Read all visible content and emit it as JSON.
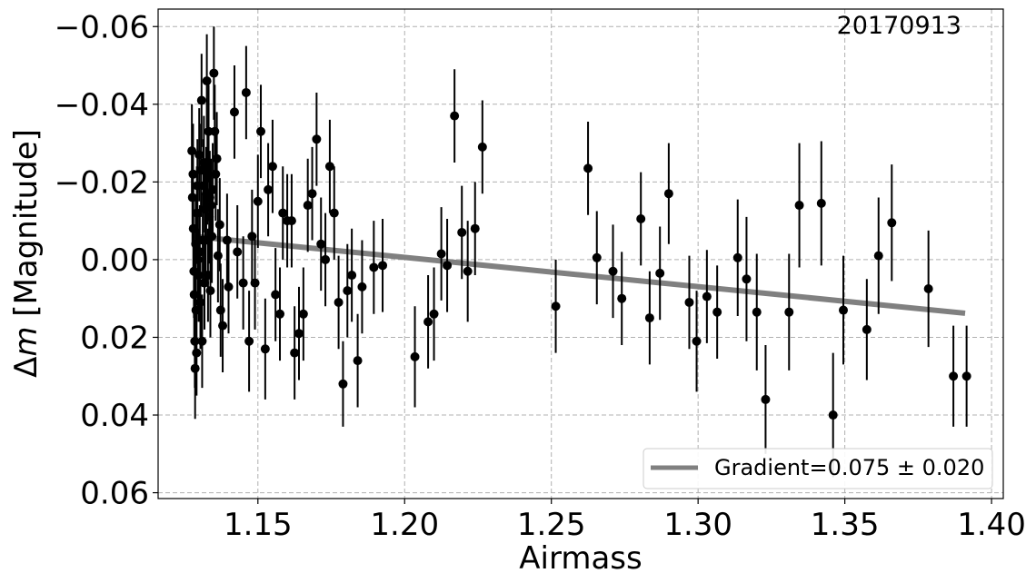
{
  "chart_data": {
    "type": "scatter",
    "annotation": "20170913",
    "xlabel": "Airmass",
    "ylabel_prefix": "Δ",
    "ylabel_var": "m",
    "ylabel_suffix": " [Magnitude]",
    "xlim": [
      1.116,
      1.404
    ],
    "ylim": [
      0.0615,
      -0.0645
    ],
    "y_inverted": true,
    "grid": true,
    "x_ticks": [
      1.15,
      1.2,
      1.25,
      1.3,
      1.35,
      1.4
    ],
    "x_tick_labels": [
      "1.15",
      "1.20",
      "1.25",
      "1.30",
      "1.35",
      "1.40"
    ],
    "y_ticks": [
      -0.06,
      -0.04,
      -0.02,
      0.0,
      0.02,
      0.04,
      0.06
    ],
    "y_tick_labels": [
      "−0.06",
      "−0.04",
      "−0.02",
      "0.00",
      "0.02",
      "0.04",
      "0.06"
    ],
    "marker_color": "#000000",
    "fit_color": "#808080",
    "legend_position": "lower-right",
    "fit": {
      "label": "Gradient=0.075 ± 0.020",
      "x": [
        1.128,
        1.391
      ],
      "y": [
        -0.006,
        0.0138
      ]
    },
    "points": [
      {
        "x": 1.1275,
        "y": -0.028,
        "err": 0.012
      },
      {
        "x": 1.1277,
        "y": -0.016,
        "err": 0.012
      },
      {
        "x": 1.1279,
        "y": -0.022,
        "err": 0.013
      },
      {
        "x": 1.128,
        "y": -0.008,
        "err": 0.012
      },
      {
        "x": 1.1282,
        "y": 0.003,
        "err": 0.012
      },
      {
        "x": 1.1283,
        "y": 0.009,
        "err": 0.012
      },
      {
        "x": 1.1285,
        "y": 0.021,
        "err": 0.012
      },
      {
        "x": 1.1286,
        "y": 0.028,
        "err": 0.013
      },
      {
        "x": 1.1288,
        "y": -0.004,
        "err": 0.012
      },
      {
        "x": 1.1289,
        "y": 0.013,
        "err": 0.012
      },
      {
        "x": 1.1291,
        "y": 0.024,
        "err": 0.011
      },
      {
        "x": 1.1292,
        "y": -0.012,
        "err": 0.012
      },
      {
        "x": 1.1294,
        "y": -0.019,
        "err": 0.012
      },
      {
        "x": 1.1296,
        "y": 0.0,
        "err": 0.012
      },
      {
        "x": 1.1298,
        "y": 0.004,
        "err": 0.012
      },
      {
        "x": 1.13,
        "y": -0.027,
        "err": 0.012
      },
      {
        "x": 1.1302,
        "y": -0.002,
        "err": 0.012
      },
      {
        "x": 1.1304,
        "y": 0.011,
        "err": 0.012
      },
      {
        "x": 1.1306,
        "y": -0.023,
        "err": 0.012
      },
      {
        "x": 1.1308,
        "y": -0.041,
        "err": 0.012
      },
      {
        "x": 1.131,
        "y": 0.021,
        "err": 0.012
      },
      {
        "x": 1.1312,
        "y": -0.005,
        "err": 0.012
      },
      {
        "x": 1.1314,
        "y": -0.019,
        "err": 0.012
      },
      {
        "x": 1.1316,
        "y": -0.025,
        "err": 0.012
      },
      {
        "x": 1.1318,
        "y": 0.006,
        "err": 0.012
      },
      {
        "x": 1.132,
        "y": -0.013,
        "err": 0.012
      },
      {
        "x": 1.1322,
        "y": -0.005,
        "err": 0.012
      },
      {
        "x": 1.1324,
        "y": -0.017,
        "err": 0.012
      },
      {
        "x": 1.1326,
        "y": -0.046,
        "err": 0.012
      },
      {
        "x": 1.1328,
        "y": -0.021,
        "err": 0.012
      },
      {
        "x": 1.133,
        "y": 0.004,
        "err": 0.012
      },
      {
        "x": 1.1332,
        "y": -0.033,
        "err": 0.012
      },
      {
        "x": 1.1334,
        "y": -0.011,
        "err": 0.012
      },
      {
        "x": 1.1336,
        "y": -0.016,
        "err": 0.012
      },
      {
        "x": 1.1338,
        "y": 0.008,
        "err": 0.012
      },
      {
        "x": 1.134,
        "y": -0.014,
        "err": 0.012
      },
      {
        "x": 1.1343,
        "y": -0.006,
        "err": 0.012
      },
      {
        "x": 1.1346,
        "y": -0.018,
        "err": 0.012
      },
      {
        "x": 1.135,
        "y": -0.048,
        "err": 0.012
      },
      {
        "x": 1.1353,
        "y": -0.033,
        "err": 0.012
      },
      {
        "x": 1.1356,
        "y": -0.022,
        "err": 0.012
      },
      {
        "x": 1.136,
        "y": -0.026,
        "err": 0.012
      },
      {
        "x": 1.1364,
        "y": -0.001,
        "err": 0.012
      },
      {
        "x": 1.137,
        "y": -0.009,
        "err": 0.012
      },
      {
        "x": 1.1373,
        "y": 0.013,
        "err": 0.012
      },
      {
        "x": 1.138,
        "y": 0.017,
        "err": 0.012
      },
      {
        "x": 1.1395,
        "y": -0.005,
        "err": 0.012
      },
      {
        "x": 1.14,
        "y": 0.007,
        "err": 0.012
      },
      {
        "x": 1.142,
        "y": -0.038,
        "err": 0.012
      },
      {
        "x": 1.143,
        "y": -0.002,
        "err": 0.012
      },
      {
        "x": 1.145,
        "y": 0.006,
        "err": 0.012
      },
      {
        "x": 1.146,
        "y": -0.043,
        "err": 0.012
      },
      {
        "x": 1.147,
        "y": 0.021,
        "err": 0.013
      },
      {
        "x": 1.148,
        "y": -0.006,
        "err": 0.012
      },
      {
        "x": 1.149,
        "y": 0.006,
        "err": 0.012
      },
      {
        "x": 1.15,
        "y": -0.015,
        "err": 0.012
      },
      {
        "x": 1.151,
        "y": -0.033,
        "err": 0.012
      },
      {
        "x": 1.1525,
        "y": 0.023,
        "err": 0.013
      },
      {
        "x": 1.1535,
        "y": -0.018,
        "err": 0.012
      },
      {
        "x": 1.155,
        "y": -0.024,
        "err": 0.012
      },
      {
        "x": 1.156,
        "y": 0.009,
        "err": 0.012
      },
      {
        "x": 1.1575,
        "y": 0.014,
        "err": 0.012
      },
      {
        "x": 1.1585,
        "y": -0.012,
        "err": 0.012
      },
      {
        "x": 1.16,
        "y": -0.01,
        "err": 0.012
      },
      {
        "x": 1.1615,
        "y": -0.01,
        "err": 0.012
      },
      {
        "x": 1.1625,
        "y": 0.024,
        "err": 0.012
      },
      {
        "x": 1.164,
        "y": 0.019,
        "err": 0.012
      },
      {
        "x": 1.1655,
        "y": 0.014,
        "err": 0.012
      },
      {
        "x": 1.167,
        "y": -0.014,
        "err": 0.012
      },
      {
        "x": 1.1685,
        "y": -0.017,
        "err": 0.012
      },
      {
        "x": 1.17,
        "y": -0.031,
        "err": 0.012
      },
      {
        "x": 1.1715,
        "y": -0.004,
        "err": 0.012
      },
      {
        "x": 1.173,
        "y": 0.0,
        "err": 0.012
      },
      {
        "x": 1.1745,
        "y": -0.024,
        "err": 0.012
      },
      {
        "x": 1.176,
        "y": -0.012,
        "err": 0.012
      },
      {
        "x": 1.1775,
        "y": 0.011,
        "err": 0.012
      },
      {
        "x": 1.179,
        "y": 0.032,
        "err": 0.011
      },
      {
        "x": 1.1805,
        "y": 0.008,
        "err": 0.012
      },
      {
        "x": 1.182,
        "y": 0.004,
        "err": 0.012
      },
      {
        "x": 1.184,
        "y": 0.026,
        "err": 0.012
      },
      {
        "x": 1.1855,
        "y": 0.007,
        "err": 0.012
      },
      {
        "x": 1.1895,
        "y": 0.002,
        "err": 0.012
      },
      {
        "x": 1.1925,
        "y": 0.0015,
        "err": 0.012
      },
      {
        "x": 1.2035,
        "y": 0.025,
        "err": 0.013
      },
      {
        "x": 1.208,
        "y": 0.016,
        "err": 0.012
      },
      {
        "x": 1.21,
        "y": 0.014,
        "err": 0.012
      },
      {
        "x": 1.2125,
        "y": -0.0015,
        "err": 0.012
      },
      {
        "x": 1.2145,
        "y": 0.0015,
        "err": 0.012
      },
      {
        "x": 1.217,
        "y": -0.037,
        "err": 0.012
      },
      {
        "x": 1.2195,
        "y": -0.007,
        "err": 0.012
      },
      {
        "x": 1.2215,
        "y": 0.003,
        "err": 0.013
      },
      {
        "x": 1.224,
        "y": -0.008,
        "err": 0.012
      },
      {
        "x": 1.2265,
        "y": -0.029,
        "err": 0.012
      },
      {
        "x": 1.2515,
        "y": 0.012,
        "err": 0.012
      },
      {
        "x": 1.2625,
        "y": -0.0235,
        "err": 0.012
      },
      {
        "x": 1.2655,
        "y": -0.0005,
        "err": 0.012
      },
      {
        "x": 1.271,
        "y": 0.003,
        "err": 0.012
      },
      {
        "x": 1.274,
        "y": 0.01,
        "err": 0.012
      },
      {
        "x": 1.2805,
        "y": -0.0105,
        "err": 0.012
      },
      {
        "x": 1.2835,
        "y": 0.015,
        "err": 0.012
      },
      {
        "x": 1.287,
        "y": 0.0035,
        "err": 0.012
      },
      {
        "x": 1.29,
        "y": -0.017,
        "err": 0.013
      },
      {
        "x": 1.297,
        "y": 0.011,
        "err": 0.012
      },
      {
        "x": 1.2995,
        "y": 0.021,
        "err": 0.013
      },
      {
        "x": 1.303,
        "y": 0.0095,
        "err": 0.012
      },
      {
        "x": 1.3065,
        "y": 0.0135,
        "err": 0.012
      },
      {
        "x": 1.3135,
        "y": -0.0005,
        "err": 0.015
      },
      {
        "x": 1.3165,
        "y": 0.005,
        "err": 0.016
      },
      {
        "x": 1.32,
        "y": 0.0135,
        "err": 0.015
      },
      {
        "x": 1.323,
        "y": 0.036,
        "err": 0.014
      },
      {
        "x": 1.331,
        "y": 0.0135,
        "err": 0.015
      },
      {
        "x": 1.3345,
        "y": -0.014,
        "err": 0.016
      },
      {
        "x": 1.342,
        "y": -0.0145,
        "err": 0.016
      },
      {
        "x": 1.346,
        "y": 0.04,
        "err": 0.016
      },
      {
        "x": 1.3495,
        "y": 0.013,
        "err": 0.014
      },
      {
        "x": 1.3575,
        "y": 0.018,
        "err": 0.013
      },
      {
        "x": 1.3615,
        "y": -0.001,
        "err": 0.015
      },
      {
        "x": 1.366,
        "y": -0.0095,
        "err": 0.015
      },
      {
        "x": 1.3785,
        "y": 0.0075,
        "err": 0.015
      },
      {
        "x": 1.387,
        "y": 0.03,
        "err": 0.013
      },
      {
        "x": 1.3915,
        "y": 0.03,
        "err": 0.013
      }
    ]
  }
}
